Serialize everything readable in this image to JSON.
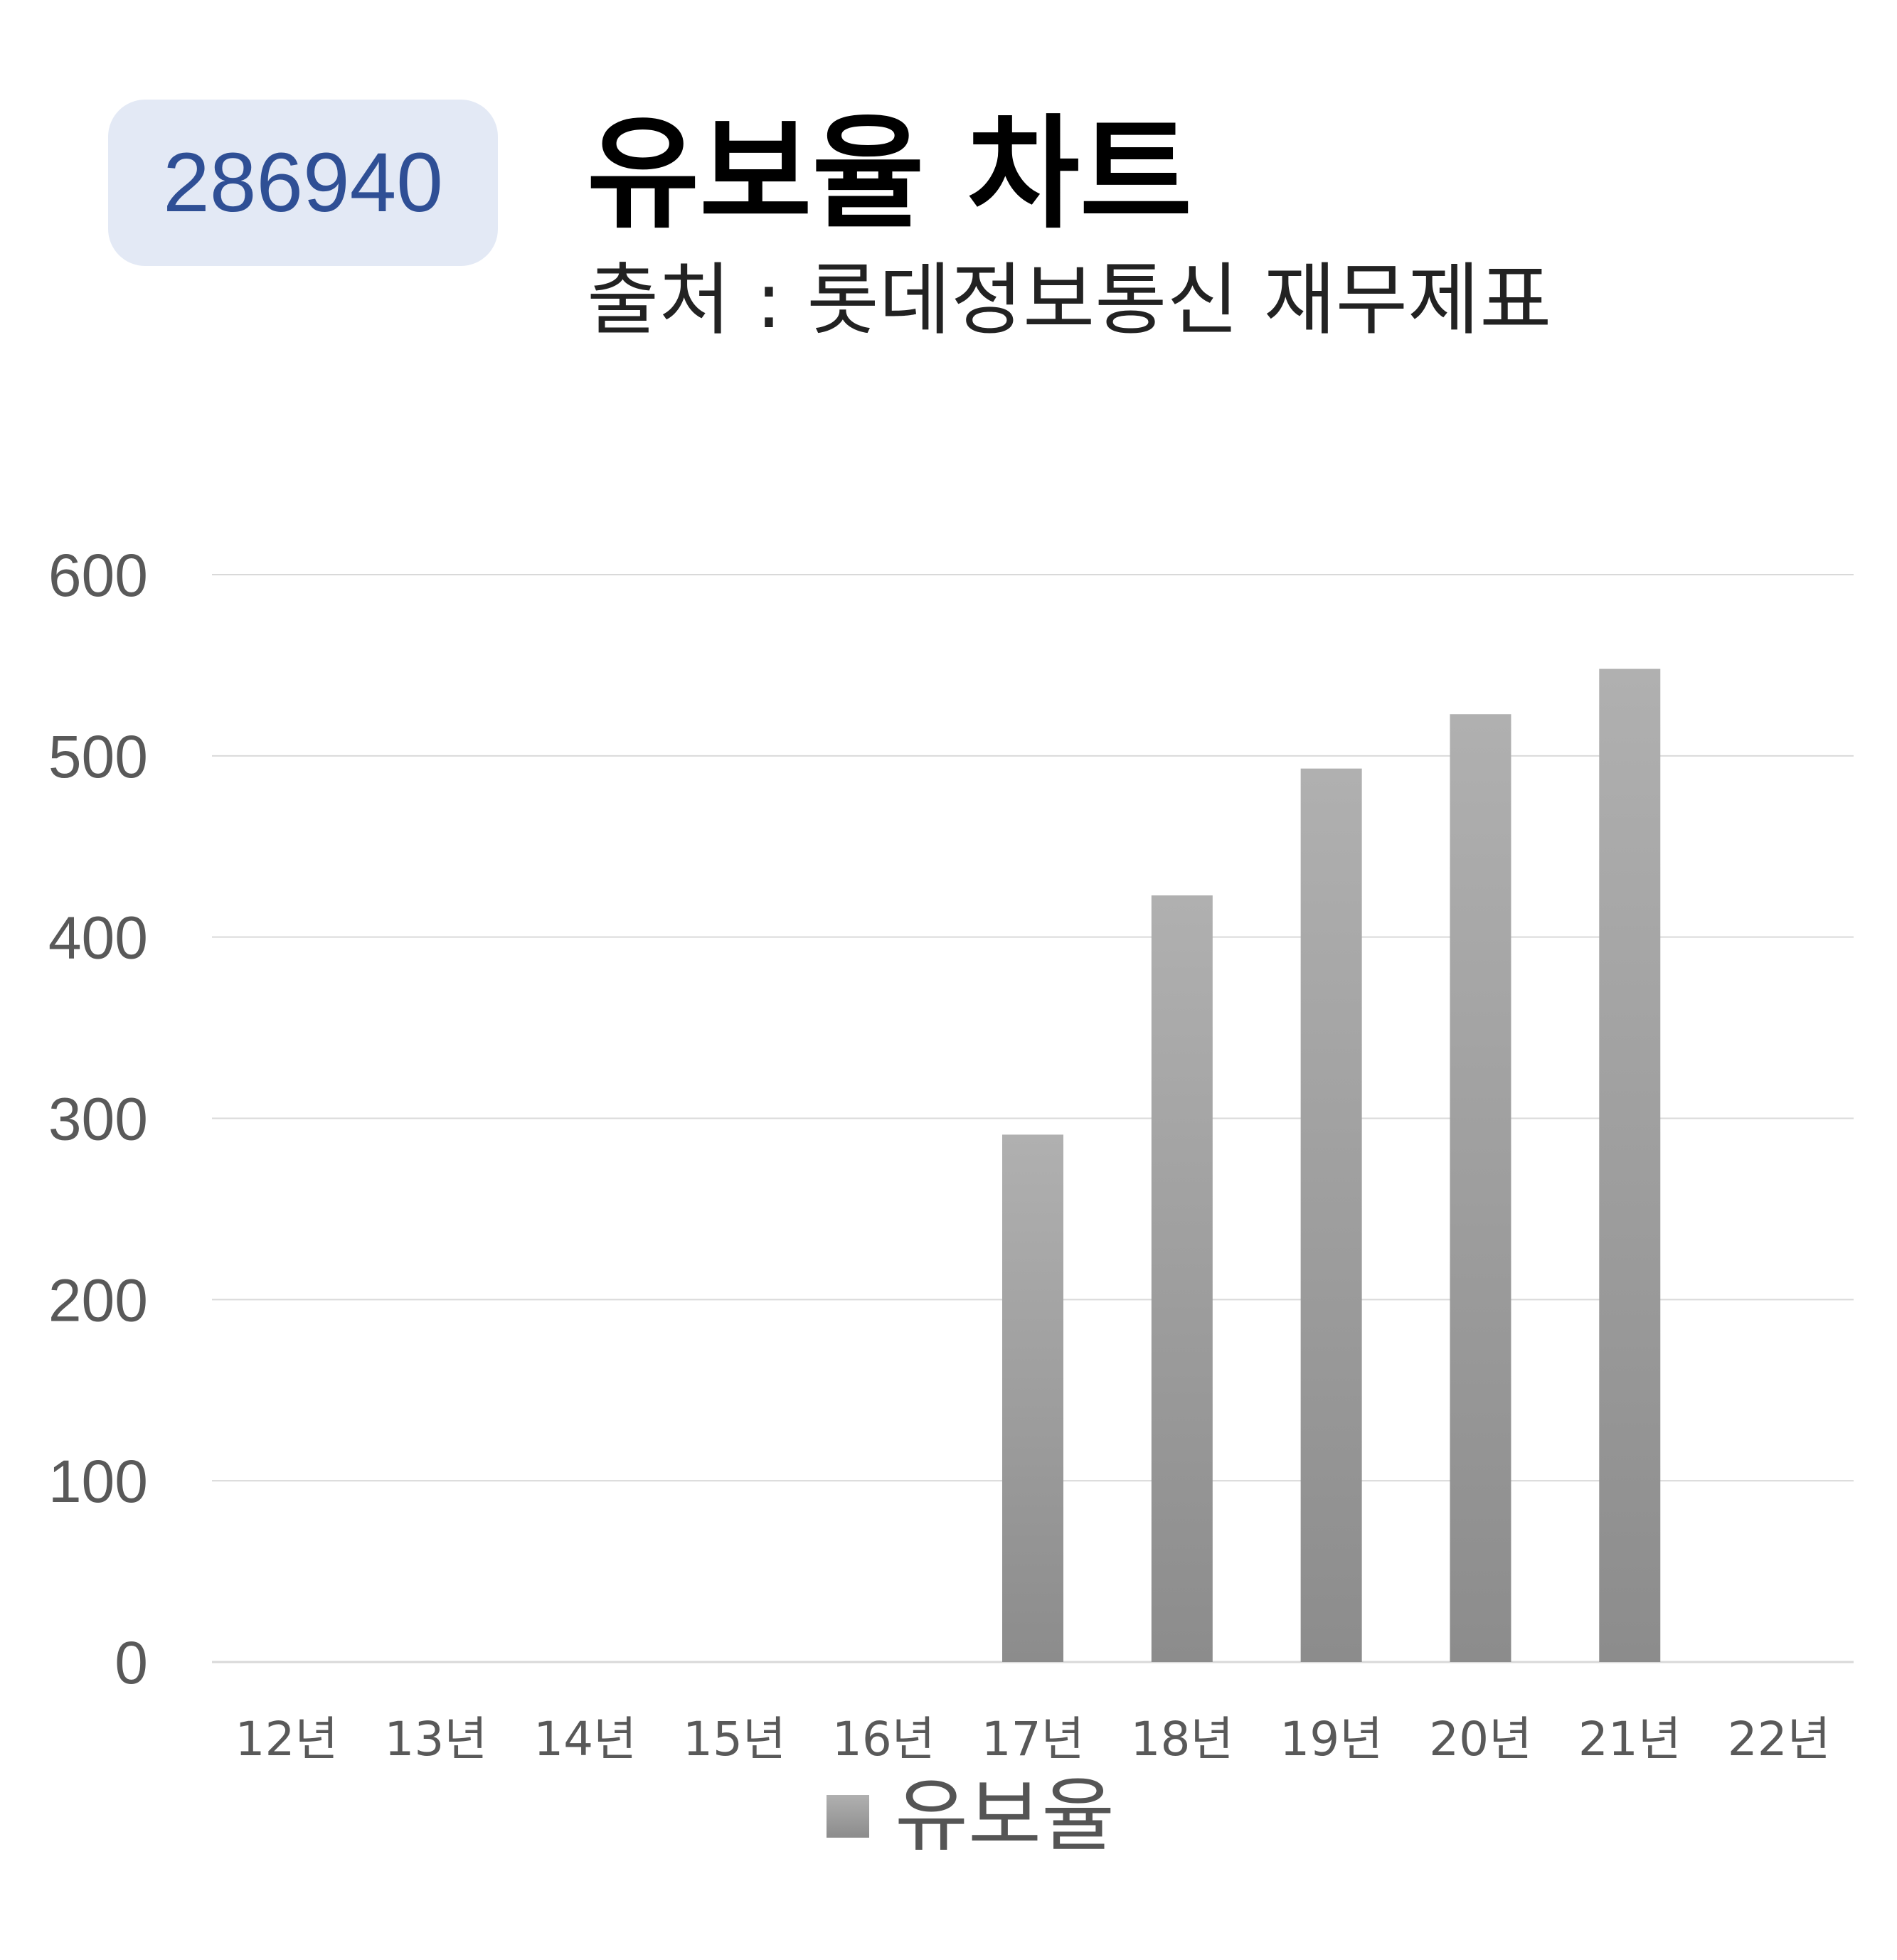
{
  "header": {
    "stock_code": "286940",
    "title": "유보율 차트",
    "source": "출처 : 롯데정보통신 재무제표"
  },
  "colors": {
    "badge_bg": "#e3e9f5",
    "badge_text": "#2f4f95",
    "bar_top": "#b0b0b0",
    "bar_bottom": "#8c8c8c",
    "gridline": "#d9d9d9",
    "tick_text": "#595959"
  },
  "chart_data": {
    "type": "bar",
    "title": "유보율 차트",
    "xlabel": "",
    "ylabel": "",
    "categories": [
      "12년",
      "13년",
      "14년",
      "15년",
      "16년",
      "17년",
      "18년",
      "19년",
      "20년",
      "21년",
      "22년"
    ],
    "series": [
      {
        "name": "유보율",
        "values": [
          null,
          null,
          null,
          null,
          null,
          291,
          423,
          493,
          523,
          548,
          null
        ]
      }
    ],
    "ylim": [
      0,
      600
    ],
    "yticks": [
      0,
      100,
      200,
      300,
      400,
      500,
      600
    ],
    "grid": true,
    "legend": "bottom"
  }
}
